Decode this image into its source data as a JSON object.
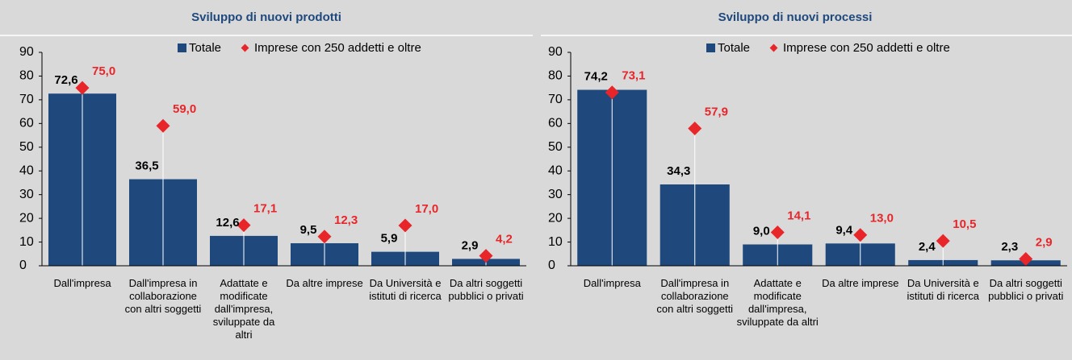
{
  "chart_data": [
    {
      "type": "bar",
      "title": "Sviluppo di nuovi prodotti",
      "categories": [
        "Dall'impresa",
        "Dall'impresa in collaborazione con altri soggetti",
        "Adattate e modificate dall'impresa, sviluppate da altri",
        "Da altre imprese",
        "Da Università e istituti di ricerca",
        "Da altri soggetti pubblici o privati"
      ],
      "series": [
        {
          "name": "Totale",
          "color": "#1f497d",
          "values": [
            72.6,
            36.5,
            12.6,
            9.5,
            5.9,
            2.9
          ],
          "value_labels": [
            "72,6",
            "36,5",
            "12,6",
            "9,5",
            "5,9",
            "2,9"
          ]
        },
        {
          "name": "Imprese con 250 addetti e oltre",
          "color": "#e8262a",
          "values": [
            75.0,
            59.0,
            17.1,
            12.3,
            17.0,
            4.2
          ],
          "value_labels": [
            "75,0",
            "59,0",
            "17,1",
            "12,3",
            "17,0",
            "4,2"
          ]
        }
      ],
      "ylim": [
        0,
        90
      ],
      "yticks": [
        0,
        10,
        20,
        30,
        40,
        50,
        60,
        70,
        80,
        90
      ]
    },
    {
      "type": "bar",
      "title": "Sviluppo di nuovi processi",
      "categories": [
        "Dall'impresa",
        "Dall'impresa in collaborazione con altri soggetti",
        "Adattate e modificate dall'impresa, sviluppate da altri",
        "Da altre imprese",
        "Da Università e istituti di ricerca",
        "Da altri soggetti pubblici o privati"
      ],
      "series": [
        {
          "name": "Totale",
          "color": "#1f497d",
          "values": [
            74.2,
            34.3,
            9.0,
            9.4,
            2.4,
            2.3
          ],
          "value_labels": [
            "74,2",
            "34,3",
            "9,0",
            "9,4",
            "2,4",
            "2,3"
          ]
        },
        {
          "name": "Imprese con 250 addetti e oltre",
          "color": "#e8262a",
          "values": [
            73.1,
            57.9,
            14.1,
            13.0,
            10.5,
            2.9
          ],
          "value_labels": [
            "73,1",
            "57,9",
            "14,1",
            "13,0",
            "10,5",
            "2,9"
          ]
        }
      ],
      "ylim": [
        0,
        90
      ],
      "yticks": [
        0,
        10,
        20,
        30,
        40,
        50,
        60,
        70,
        80,
        90
      ]
    }
  ]
}
